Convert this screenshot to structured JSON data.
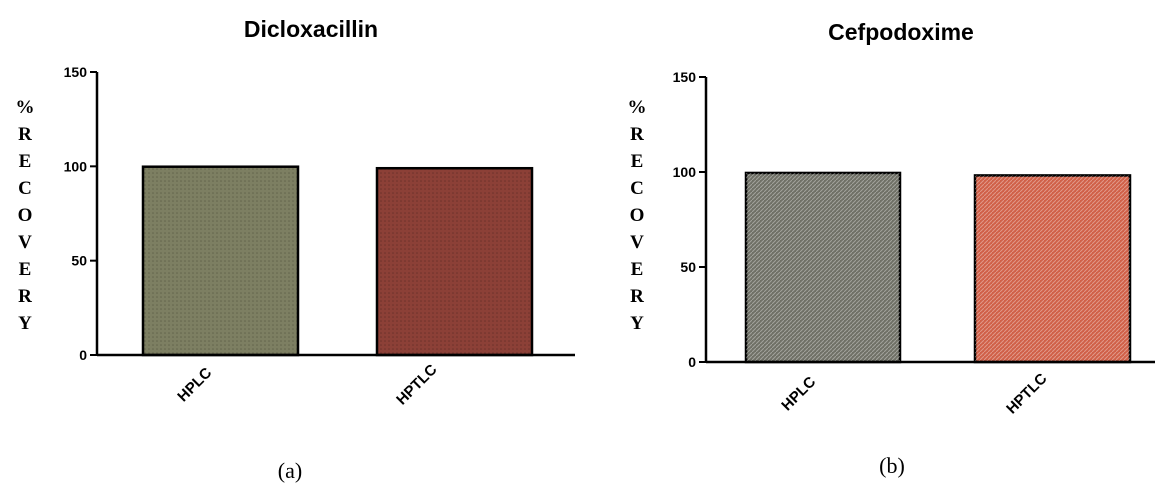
{
  "chart_data": [
    {
      "type": "bar",
      "title": "Dicloxacillin",
      "ylabel": "%RECOVERY",
      "ylim": [
        0,
        150
      ],
      "yticks": [
        0,
        50,
        100,
        150
      ],
      "categories": [
        "HPLC",
        "HPTLC"
      ],
      "values": [
        99.8,
        99.0
      ],
      "colors": [
        "#7d7f62",
        "#8c4037"
      ],
      "panel_label": "(a)"
    },
    {
      "type": "bar",
      "title": "Cefpodoxime",
      "ylabel": "%RECOVERY",
      "ylim": [
        0,
        150
      ],
      "yticks": [
        0,
        50,
        100,
        150
      ],
      "categories": [
        "HPLC",
        "HPTLC"
      ],
      "values": [
        99.5,
        98.2
      ],
      "colors": [
        "#6f7066",
        "#d06048"
      ],
      "panel_label": "(b)"
    }
  ]
}
